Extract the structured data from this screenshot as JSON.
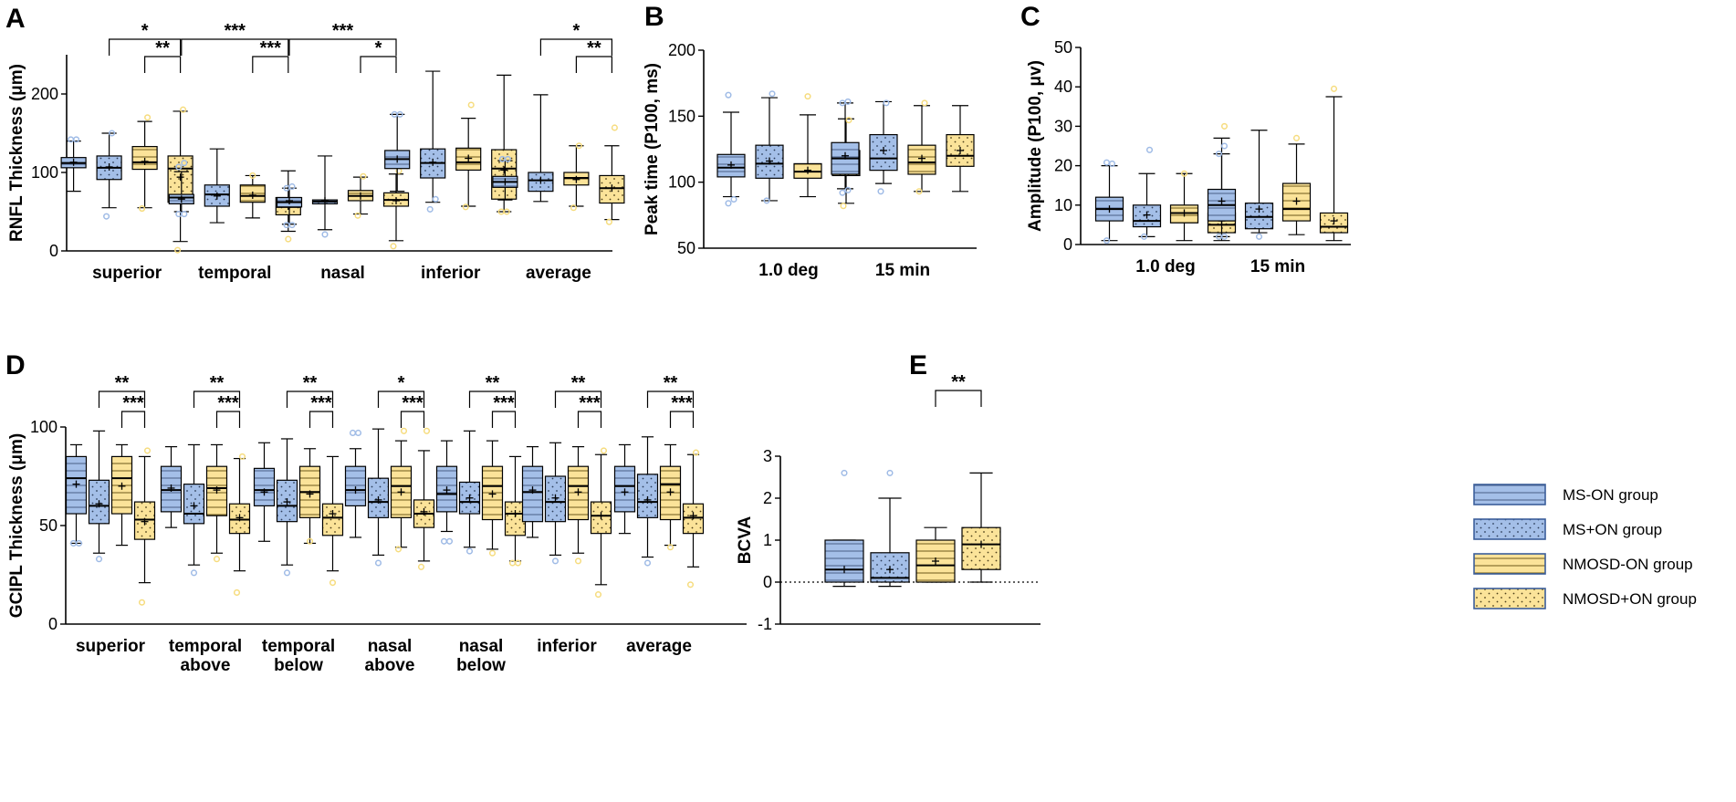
{
  "colors": {
    "ms": "#a4bfe8",
    "nmosd": "#fbe399",
    "ms_out": "#9fbbe6",
    "nmosd_out": "#f6dc7e",
    "axis": "#000000"
  },
  "legend": [
    {
      "label": "MS-ON group",
      "fill": "ms",
      "pattern": "stripe"
    },
    {
      "label": "MS+ON group",
      "fill": "ms",
      "pattern": "dots"
    },
    {
      "label": "NMOSD-ON group",
      "fill": "nmosd",
      "pattern": "stripe"
    },
    {
      "label": "NMOSD+ON group",
      "fill": "nmosd",
      "pattern": "dots"
    }
  ],
  "chart_data": [
    {
      "panel": "A",
      "type": "box",
      "ylabel": "RNFL Thickness (μm)",
      "ylim": [
        0,
        250
      ],
      "yticks": [
        0,
        100,
        200
      ],
      "yticklabels": [
        "0",
        "100",
        "200"
      ],
      "categories": [
        "superior",
        "temporal",
        "nasal",
        "inferior",
        "average"
      ],
      "boxes": [
        [
          [
            76,
            106,
            112,
            119,
            140,
            113,
            [
              142,
              142
            ]
          ],
          [
            55,
            91,
            106,
            121,
            150,
            107,
            [
              44,
              150
            ]
          ],
          [
            55,
            104,
            113,
            133,
            165,
            114,
            [
              54,
              170
            ]
          ],
          [
            12,
            62,
            105,
            121,
            178,
            94,
            [
              1,
              180
            ]
          ]
        ],
        [
          [
            50,
            60,
            68,
            72,
            101,
            66,
            [
              47,
              47,
              107,
              112
            ]
          ],
          [
            36,
            57,
            72,
            84,
            130,
            70,
            []
          ],
          [
            42,
            62,
            70,
            84,
            96,
            71,
            [
              96
            ]
          ],
          [
            25,
            46,
            56,
            68,
            102,
            57,
            [
              15
            ]
          ]
        ],
        [
          [
            34,
            56,
            62,
            68,
            80,
            64,
            [
              33,
              33,
              80,
              82
            ]
          ],
          [
            27,
            60,
            63,
            65,
            121,
            64,
            [
              21
            ]
          ],
          [
            47,
            64,
            70,
            77,
            94,
            70,
            [
              45,
              95
            ]
          ],
          [
            13,
            57,
            65,
            74,
            98,
            64,
            [
              6,
              102
            ]
          ]
        ],
        [
          [
            76,
            105,
            117,
            128,
            174,
            117,
            [
              174,
              174
            ]
          ],
          [
            62,
            93,
            112,
            130,
            229,
            113,
            [
              53,
              66
            ]
          ],
          [
            57,
            103,
            113,
            131,
            169,
            118,
            [
              56,
              186
            ]
          ],
          [
            50,
            66,
            105,
            129,
            224,
            103,
            [
              50,
              50
            ]
          ]
        ],
        [
          [
            65,
            81,
            88,
            95,
            115,
            88,
            [
              117,
              117
            ]
          ],
          [
            63,
            76,
            90,
            100,
            199,
            90,
            []
          ],
          [
            57,
            84,
            93,
            100,
            134,
            91,
            [
              55,
              134
            ]
          ],
          [
            40,
            61,
            80,
            96,
            134,
            80,
            [
              37,
              157
            ]
          ]
        ]
      ],
      "sig": [
        {
          "g": 0,
          "from": 1,
          "to": 3,
          "level": 1,
          "label": "*"
        },
        {
          "g": 0,
          "from": 2,
          "to": 3,
          "level": 0,
          "label": "**"
        },
        {
          "g": 1,
          "from": 0,
          "to": 3,
          "level": 1,
          "label": "***"
        },
        {
          "g": 1,
          "from": 2,
          "to": 3,
          "level": 0,
          "label": "***"
        },
        {
          "g": 2,
          "from": 0,
          "to": 3,
          "level": 1,
          "label": "***"
        },
        {
          "g": 2,
          "from": 2,
          "to": 3,
          "level": 0,
          "label": "*"
        },
        {
          "g": 4,
          "from": 1,
          "to": 3,
          "level": 1,
          "label": "*"
        },
        {
          "g": 4,
          "from": 2,
          "to": 3,
          "level": 0,
          "label": "**"
        }
      ]
    },
    {
      "panel": "B",
      "type": "box",
      "ylabel": "Peak time (P100, ms)",
      "ylim": [
        50,
        200
      ],
      "yticks": [
        50,
        100,
        150,
        200
      ],
      "yticklabels": [
        "50",
        "100",
        "150",
        "200"
      ],
      "categories": [
        "1.0 deg",
        "15 min"
      ],
      "boxes": [
        [
          [
            89,
            104,
            111,
            121,
            153,
            113,
            [
              84,
              87,
              166
            ]
          ],
          [
            86,
            103,
            114,
            128,
            164,
            116,
            [
              86,
              167
            ]
          ],
          [
            89,
            103,
            108,
            114,
            151,
            109,
            [
              165
            ]
          ],
          [
            84,
            105,
            112,
            124,
            148,
            113,
            [
              82,
              147
            ]
          ]
        ],
        [
          [
            95,
            106,
            118,
            130,
            160,
            120,
            [
              92,
              94,
              160,
              161
            ]
          ],
          [
            99,
            109,
            118,
            136,
            161,
            124,
            [
              93,
              160
            ]
          ],
          [
            93,
            106,
            115,
            128,
            158,
            118,
            [
              93,
              160
            ]
          ],
          [
            93,
            112,
            120,
            136,
            158,
            124,
            []
          ]
        ]
      ],
      "sig": []
    },
    {
      "panel": "C",
      "type": "box",
      "ylabel": "Amplitude (P100, μv)",
      "ylim": [
        0,
        50
      ],
      "yticks": [
        0,
        10,
        20,
        30,
        40,
        50
      ],
      "yticklabels": [
        "0",
        "10",
        "20",
        "30",
        "40",
        "50"
      ],
      "categories": [
        "1.0 deg",
        "15 min"
      ],
      "boxes": [
        [
          [
            1,
            6,
            9,
            12,
            20,
            9,
            [
              1,
              20.5,
              20.8
            ]
          ],
          [
            2,
            4.5,
            6,
            10,
            18,
            7.5,
            [
              2,
              24
            ]
          ],
          [
            1,
            5.5,
            8,
            10,
            18,
            8,
            [
              18
            ]
          ],
          [
            1,
            3,
            5,
            8,
            27,
            6,
            [
              2,
              30
            ]
          ]
        ],
        [
          [
            2,
            6,
            10,
            14,
            23,
            11,
            [
              2,
              2,
              23,
              25
            ]
          ],
          [
            3,
            4,
            7,
            10.5,
            29,
            9,
            [
              2
            ]
          ],
          [
            2.5,
            6,
            9,
            15.5,
            25.5,
            11,
            [
              27
            ]
          ],
          [
            1,
            3,
            4.5,
            8,
            37.5,
            6,
            [
              39.5
            ]
          ]
        ]
      ],
      "sig": []
    },
    {
      "panel": "D",
      "type": "box",
      "ylabel": "GCIPL Thickness (μm)",
      "ylim": [
        0,
        100
      ],
      "yticks": [
        0,
        50,
        100
      ],
      "yticklabels": [
        "0",
        "50",
        "100"
      ],
      "categories": [
        "superior",
        "temporal\nabove",
        "temporal\nbelow",
        "nasal\nabove",
        "nasal\nbelow",
        "inferior",
        "average"
      ],
      "boxes": [
        [
          [
            41,
            56,
            74,
            85,
            91,
            71,
            [
              41,
              41
            ]
          ],
          [
            36,
            51,
            60,
            73,
            98,
            61,
            [
              33
            ]
          ],
          [
            40,
            56,
            74,
            85,
            91,
            70,
            []
          ],
          [
            21,
            43,
            53,
            62,
            85,
            52,
            [
              11,
              88
            ]
          ]
        ],
        [
          [
            49,
            57,
            68,
            80,
            90,
            69,
            []
          ],
          [
            30,
            51,
            56,
            71,
            91,
            60,
            [
              26
            ]
          ],
          [
            36,
            55,
            69,
            80,
            91,
            68,
            [
              33
            ]
          ],
          [
            27,
            46,
            53,
            61,
            84,
            54,
            [
              16,
              85
            ]
          ]
        ],
        [
          [
            42,
            60,
            68,
            79,
            92,
            67,
            []
          ],
          [
            30,
            52,
            60,
            73,
            94,
            62,
            [
              26
            ]
          ],
          [
            41,
            54,
            67,
            80,
            89,
            66,
            [
              42
            ]
          ],
          [
            27,
            45,
            54,
            61,
            85,
            56,
            [
              21
            ]
          ]
        ],
        [
          [
            44,
            60,
            68,
            80,
            89,
            68,
            [
              97,
              97
            ]
          ],
          [
            35,
            54,
            62,
            74,
            99,
            63,
            [
              31
            ]
          ],
          [
            39,
            54,
            70,
            80,
            93,
            67,
            [
              38,
              98
            ]
          ],
          [
            32,
            49,
            56,
            63,
            88,
            57,
            [
              29,
              98
            ]
          ]
        ],
        [
          [
            47,
            57,
            66,
            80,
            93,
            68,
            [
              42,
              42
            ]
          ],
          [
            39,
            56,
            62,
            72,
            98,
            64,
            [
              37
            ]
          ],
          [
            38,
            53,
            70,
            80,
            93,
            66,
            [
              36
            ]
          ],
          [
            32,
            45,
            56,
            62,
            85,
            56,
            [
              31,
              31
            ]
          ]
        ],
        [
          [
            44,
            52,
            67,
            80,
            90,
            68,
            []
          ],
          [
            35,
            52,
            62,
            75,
            92,
            64,
            [
              32
            ]
          ],
          [
            36,
            53,
            70,
            80,
            90,
            67,
            [
              32
            ]
          ],
          [
            20,
            46,
            55,
            62,
            86,
            55,
            [
              15,
              88
            ]
          ]
        ],
        [
          [
            46,
            57,
            70,
            80,
            91,
            67,
            []
          ],
          [
            34,
            54,
            62,
            76,
            95,
            63,
            [
              31
            ]
          ],
          [
            40,
            53,
            71,
            80,
            91,
            67,
            [
              39
            ]
          ],
          [
            29,
            46,
            54,
            61,
            86,
            55,
            [
              20,
              87
            ]
          ]
        ]
      ],
      "sig": [
        {
          "g": 0,
          "from": 1,
          "to": 3,
          "level": 1,
          "label": "**"
        },
        {
          "g": 0,
          "from": 2,
          "to": 3,
          "level": 0,
          "label": "***"
        },
        {
          "g": 1,
          "from": 1,
          "to": 3,
          "level": 1,
          "label": "**"
        },
        {
          "g": 1,
          "from": 2,
          "to": 3,
          "level": 0,
          "label": "***"
        },
        {
          "g": 2,
          "from": 1,
          "to": 3,
          "level": 1,
          "label": "**"
        },
        {
          "g": 2,
          "from": 2,
          "to": 3,
          "level": 0,
          "label": "***"
        },
        {
          "g": 3,
          "from": 1,
          "to": 3,
          "level": 1,
          "label": "*"
        },
        {
          "g": 3,
          "from": 2,
          "to": 3,
          "level": 0,
          "label": "***"
        },
        {
          "g": 4,
          "from": 1,
          "to": 3,
          "level": 1,
          "label": "**"
        },
        {
          "g": 4,
          "from": 2,
          "to": 3,
          "level": 0,
          "label": "***"
        },
        {
          "g": 5,
          "from": 1,
          "to": 3,
          "level": 1,
          "label": "**"
        },
        {
          "g": 5,
          "from": 2,
          "to": 3,
          "level": 0,
          "label": "***"
        },
        {
          "g": 6,
          "from": 1,
          "to": 3,
          "level": 1,
          "label": "**"
        },
        {
          "g": 6,
          "from": 2,
          "to": 3,
          "level": 0,
          "label": "***"
        }
      ]
    },
    {
      "panel": "E",
      "type": "box",
      "ylabel": "BCVA",
      "ylim": [
        -1,
        3
      ],
      "yticks": [
        -1,
        0,
        1,
        2,
        3
      ],
      "yticklabels": [
        "-1",
        "0",
        "1",
        "2",
        "3"
      ],
      "categories": [
        ""
      ],
      "boxes": [
        [
          [
            -0.1,
            0,
            0.3,
            1,
            1,
            0.3,
            [
              2.6
            ]
          ],
          [
            -0.1,
            0,
            0.1,
            0.7,
            2,
            0.3,
            [
              2.6
            ]
          ],
          [
            0,
            0,
            0.4,
            1,
            1.3,
            0.5,
            []
          ],
          [
            0,
            0.3,
            0.9,
            1.3,
            2.6,
            0.9,
            []
          ]
        ]
      ],
      "sig": [
        {
          "g": 0,
          "from": 2,
          "to": 3,
          "level": 0,
          "label": "**"
        }
      ]
    }
  ]
}
